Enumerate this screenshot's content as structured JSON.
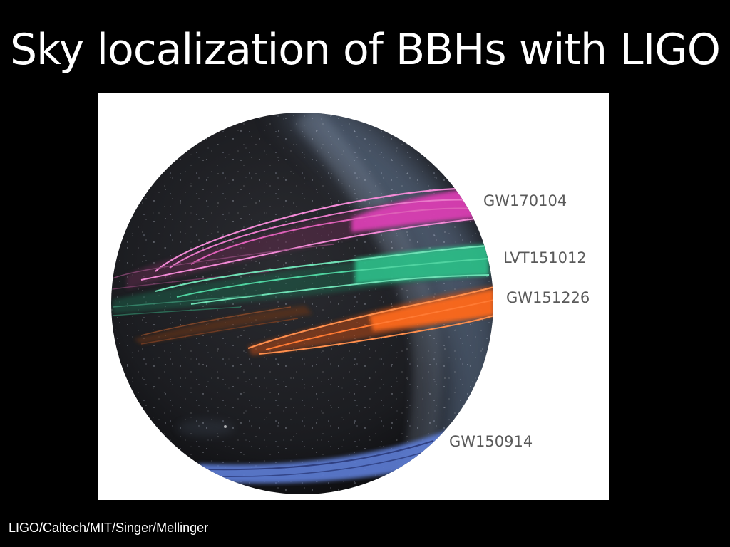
{
  "slide": {
    "title": "Sky localization of BBHs with LIGO",
    "credit": "LIGO/Caltech/MIT/Singer/Mellinger"
  },
  "figure": {
    "events": [
      {
        "label": "GW170104",
        "color": "#e040b8"
      },
      {
        "label": "LVT151012",
        "color": "#2fbf8a"
      },
      {
        "label": "GW151226",
        "color": "#ff6a1a"
      },
      {
        "label": "GW150914",
        "color": "#5f7fd8"
      }
    ],
    "colors": {
      "sky": "#1c1d21",
      "milky_way": "#8aa6c8",
      "panel_background": "#ffffff",
      "label_text": "#5a5a5a"
    }
  }
}
